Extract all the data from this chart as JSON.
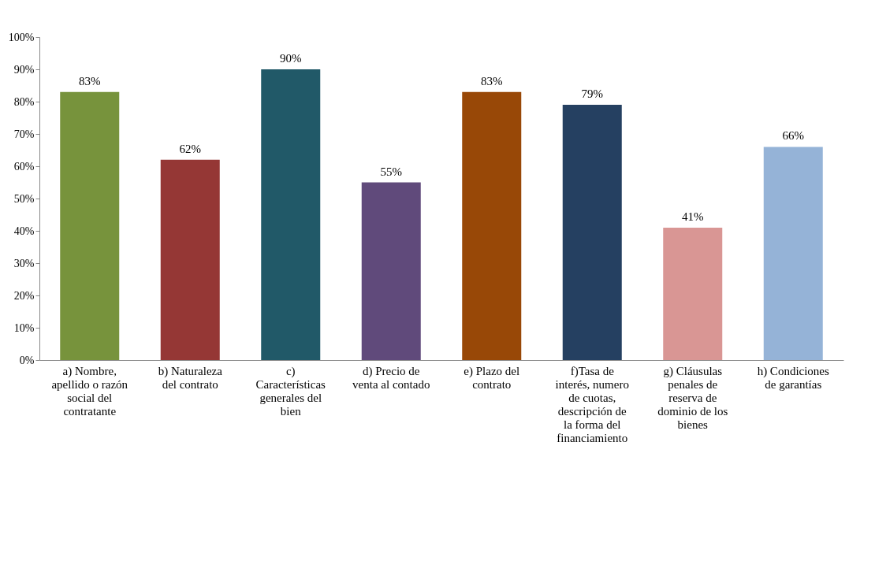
{
  "chart_data": {
    "type": "bar",
    "categories": [
      "a) Nombre, apellido o razón social del contratante",
      "b) Naturaleza del contrato",
      "c) Características generales del bien",
      "d) Precio de venta al contado",
      "e) Plazo del contrato",
      "f)Tasa de interés, numero de cuotas, descripción de la forma del financiamiento",
      "g) Cláusulas penales de reserva de dominio de los bienes",
      "h) Condiciones de garantías"
    ],
    "values": [
      83,
      62,
      90,
      55,
      83,
      79,
      41,
      66
    ],
    "colors": [
      "#77933c",
      "#953735",
      "#215968",
      "#604a7b",
      "#984807",
      "#254061",
      "#d99694",
      "#95b3d7"
    ],
    "value_labels": [
      "83%",
      "62%",
      "90%",
      "55%",
      "83%",
      "79%",
      "41%",
      "66%"
    ],
    "ylim": [
      0,
      100
    ],
    "yticks": [
      {
        "value": 0,
        "label": "0%"
      },
      {
        "value": 10,
        "label": "10%"
      },
      {
        "value": 20,
        "label": "20%"
      },
      {
        "value": 30,
        "label": "30%"
      },
      {
        "value": 40,
        "label": "40%"
      },
      {
        "value": 50,
        "label": "50%"
      },
      {
        "value": 60,
        "label": "60%"
      },
      {
        "value": 70,
        "label": "70%"
      },
      {
        "value": 80,
        "label": "80%"
      },
      {
        "value": 90,
        "label": "90%"
      },
      {
        "value": 100,
        "label": "100%"
      }
    ],
    "grid": false
  }
}
